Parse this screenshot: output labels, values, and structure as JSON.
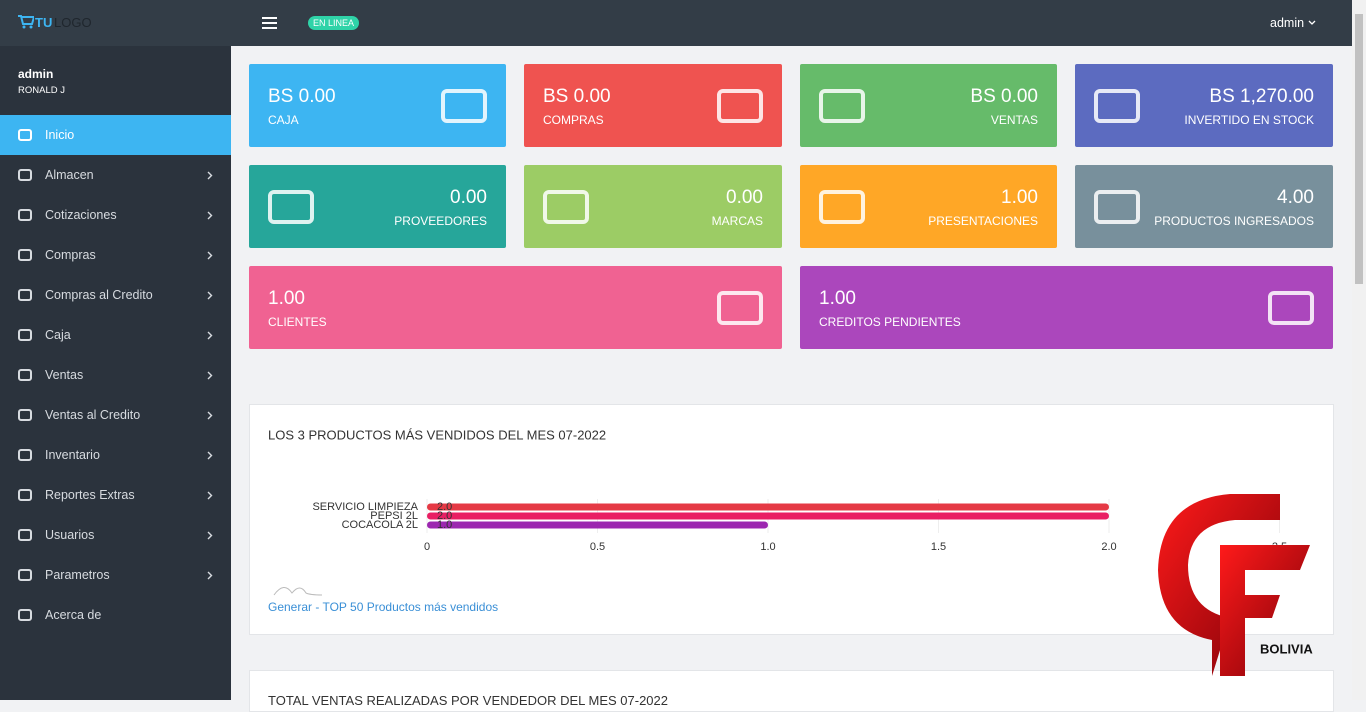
{
  "header": {
    "logo_main": "TU",
    "logo_sub": "LOGO",
    "status": "EN LINEA",
    "user": "admin"
  },
  "sidebar": {
    "user_name": "admin",
    "user_fullname": "RONALD J",
    "menu": [
      "Inicio",
      "Almacen",
      "Cotizaciones",
      "Compras",
      "Compras al Credito",
      "Caja",
      "Ventas",
      "Ventas al Credito",
      "Inventario",
      "Reportes Extras",
      "Usuarios",
      "Parametros",
      "Acerca de"
    ]
  },
  "cards": [
    {
      "value": "BS 0.00",
      "label": "CAJA",
      "color": "#3db5f2"
    },
    {
      "value": "BS 0.00",
      "label": "COMPRAS",
      "color": "#ef5350"
    },
    {
      "value": "BS 0.00",
      "label": "VENTAS",
      "color": "#66bb6a"
    },
    {
      "value": "BS 1,270.00",
      "label": "INVERTIDO EN STOCK",
      "color": "#5c6bc0"
    },
    {
      "value": "0.00",
      "label": "PROVEEDORES",
      "color": "#26a69a"
    },
    {
      "value": "0.00",
      "label": "MARCAS",
      "color": "#9ccc65"
    },
    {
      "value": "1.00",
      "label": "PRESENTACIONES",
      "color": "#ffa726"
    },
    {
      "value": "4.00",
      "label": "PRODUCTOS INGRESADOS",
      "color": "#78909c"
    },
    {
      "value": "1.00",
      "label": "CLIENTES",
      "color": "#f06292"
    },
    {
      "value": "1.00",
      "label": "CREDITOS PENDIENTES",
      "color": "#ab47bc"
    }
  ],
  "chart_data": {
    "type": "bar",
    "orientation": "horizontal",
    "title": "LOS 3 PRODUCTOS MÁS VENDIDOS DEL MES 07-2022",
    "categories": [
      "SERVICIO LIMPIEZA",
      "PEPSI 2L",
      "COCACOLA 2L"
    ],
    "values": [
      2,
      2,
      1
    ],
    "value_labels": [
      "2.0",
      "2.0",
      "1.0"
    ],
    "colors": [
      "#e53945",
      "#e91e63",
      "#9c27b0"
    ],
    "xlim": [
      0,
      2.5
    ],
    "xticks": [
      0,
      0.5,
      {
        "value": 1,
        "label": "1.0"
      },
      1.5,
      {
        "value": 2,
        "label": "2.0"
      },
      2.5
    ],
    "grid": true
  },
  "chart_link": "Generar - TOP 50 Productos más vendidos",
  "next_panel_title": "TOTAL VENTAS REALIZADAS POR VENDEDOR DEL MES 07-2022",
  "watermark": "BOLIVIA"
}
